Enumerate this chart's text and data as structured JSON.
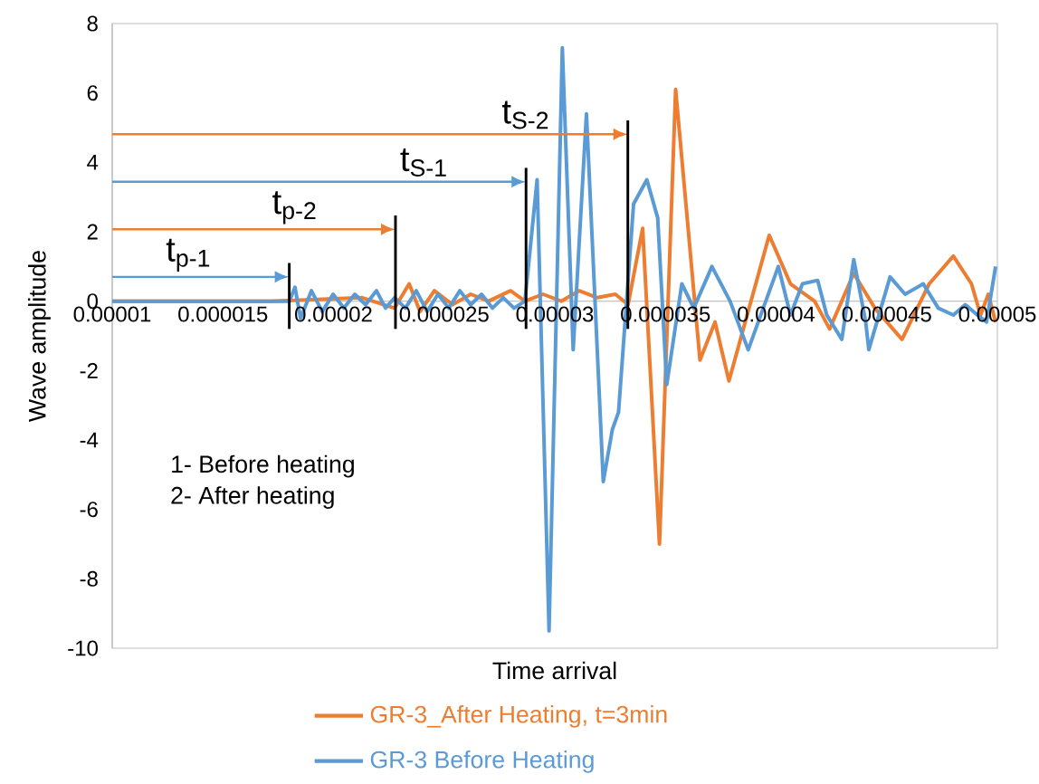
{
  "chart_data": {
    "type": "line",
    "xlabel": "Time arrival",
    "ylabel": "Wave amplitude",
    "legend": "bottom",
    "xlim": [
      1e-05,
      5e-05
    ],
    "ylim": [
      -10,
      8
    ],
    "xticks": [
      {
        "value": 1e-05,
        "label": "0.00001"
      },
      {
        "value": 1.5e-05,
        "label": "0.000015"
      },
      {
        "value": 2e-05,
        "label": "0.00002"
      },
      {
        "value": 2.5e-05,
        "label": "0.000025"
      },
      {
        "value": 3e-05,
        "label": "0.00003"
      },
      {
        "value": 3.5e-05,
        "label": "0.000035"
      },
      {
        "value": 4e-05,
        "label": "0.00004"
      },
      {
        "value": 4.5e-05,
        "label": "0.000045"
      },
      {
        "value": 5e-05,
        "label": "0.00005"
      }
    ],
    "yticks": [
      -10,
      -8,
      -6,
      -4,
      -2,
      0,
      2,
      4,
      6,
      8
    ],
    "series": [
      {
        "name": "GR-3_After Heating, t=3min",
        "color": "#ed7d31",
        "x": [
          1e-05,
          1.72e-05,
          2.129e-05,
          2.276e-05,
          2.342e-05,
          2.391e-05,
          2.456e-05,
          2.538e-05,
          2.62e-05,
          2.701e-05,
          2.8e-05,
          2.865e-05,
          2.947e-05,
          3.029e-05,
          3.11e-05,
          3.192e-05,
          3.274e-05,
          3.331e-05,
          3.397e-05,
          3.473e-05,
          3.546e-05,
          3.656e-05,
          3.724e-05,
          3.787e-05,
          3.969e-05,
          4.065e-05,
          4.174e-05,
          4.242e-05,
          4.351e-05,
          4.446e-05,
          4.569e-05,
          4.692e-05,
          4.801e-05,
          4.883e-05,
          4.924e-05,
          4.959e-05,
          4.992e-05
        ],
        "values": [
          0,
          0,
          0.1,
          -0.2,
          0.5,
          -0.3,
          0.3,
          -0.1,
          0.2,
          0,
          0.3,
          0,
          0.2,
          0,
          0.3,
          0.1,
          0.2,
          -0.1,
          2.1,
          -7.0,
          6.1,
          -1.7,
          -0.6,
          -2.3,
          1.9,
          0.5,
          0,
          -0.8,
          0.8,
          -0.2,
          -1.1,
          0.5,
          1.3,
          0.5,
          -0.4,
          0.2,
          -0.6
        ]
      },
      {
        "name": "GR-3  Before Heating",
        "color": "#5b9bd5",
        "x": [
          1e-05,
          1.8e-05,
          1.826e-05,
          1.851e-05,
          1.9e-05,
          1.949e-05,
          1.998e-05,
          2.047e-05,
          2.096e-05,
          2.145e-05,
          2.194e-05,
          2.235e-05,
          2.276e-05,
          2.325e-05,
          2.374e-05,
          2.423e-05,
          2.472e-05,
          2.521e-05,
          2.571e-05,
          2.62e-05,
          2.669e-05,
          2.718e-05,
          2.767e-05,
          2.816e-05,
          2.865e-05,
          2.92e-05,
          2.974e-05,
          3.034e-05,
          3.083e-05,
          3.143e-05,
          3.219e-05,
          3.26e-05,
          3.288e-05,
          3.356e-05,
          3.416e-05,
          3.465e-05,
          3.506e-05,
          3.574e-05,
          3.628e-05,
          3.71e-05,
          3.792e-05,
          3.874e-05,
          4.01e-05,
          4.065e-05,
          4.119e-05,
          4.188e-05,
          4.229e-05,
          4.297e-05,
          4.351e-05,
          4.405e-05,
          4.419e-05,
          4.515e-05,
          4.583e-05,
          4.665e-05,
          4.733e-05,
          4.801e-05,
          4.855e-05,
          4.91e-05,
          4.951e-05,
          4.992e-05
        ],
        "values": [
          0,
          0,
          0.4,
          -0.5,
          0.3,
          -0.3,
          0.2,
          -0.2,
          0.2,
          -0.1,
          0.3,
          -0.2,
          0.1,
          -0.2,
          0.3,
          -0.3,
          0.2,
          -0.2,
          0.3,
          -0.1,
          0.2,
          -0.2,
          0.1,
          -0.2,
          0,
          3.5,
          -9.5,
          7.3,
          -1.4,
          5.4,
          -5.2,
          -3.7,
          -3.2,
          2.8,
          3.5,
          2.4,
          -2.4,
          0.5,
          -0.2,
          1.0,
          0,
          -1.4,
          1.0,
          -0.4,
          0.5,
          0.6,
          -0.4,
          -1.1,
          1.2,
          -0.6,
          -1.4,
          0.7,
          0.2,
          0.5,
          -0.2,
          -0.4,
          -0.1,
          -0.4,
          -0.6,
          1.0
        ]
      }
    ],
    "ref_lines": [
      {
        "axis": "x",
        "value": 1.8e-05,
        "label": "t$_{p-1}$",
        "color": "#000000"
      },
      {
        "axis": "x",
        "value": 2.28e-05,
        "label": "t$_{p-2}$",
        "color": "#000000"
      },
      {
        "axis": "x",
        "value": 2.87e-05,
        "label": "t$_{S-1}$",
        "color": "#000000"
      },
      {
        "axis": "x",
        "value": 3.33e-05,
        "label": "t$_{S-2}$",
        "color": "#000000"
      }
    ],
    "annotations": [
      "1- Before heating",
      "2- After heating"
    ]
  }
}
